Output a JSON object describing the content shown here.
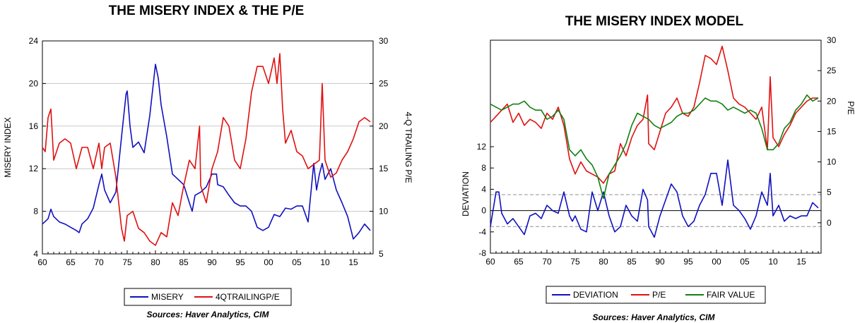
{
  "chart_data": [
    {
      "type": "line",
      "title": "THE MISERY INDEX & THE P/E",
      "ylabel_left": "MISERY INDEX",
      "ylabel_right": "4-Q TRAILING P/E",
      "xlim": [
        1960,
        2018.5
      ],
      "ylim_left": [
        4,
        24
      ],
      "ylim_right": [
        5,
        30
      ],
      "x_ticks": [
        "60",
        "65",
        "70",
        "75",
        "80",
        "85",
        "90",
        "95",
        "00",
        "05",
        "10",
        "15"
      ],
      "y_ticks_left": [
        "4",
        "8",
        "12",
        "16",
        "20",
        "24"
      ],
      "y_ticks_right": [
        "5",
        "10",
        "15",
        "20",
        "25",
        "30"
      ],
      "grid": true,
      "legend_position": "bottom",
      "source": "Sources:  Haver Analytics, CIM",
      "series": [
        {
          "name": "MISERY",
          "axis": "left",
          "color": "#1010c0",
          "x": [
            1960,
            1961,
            1961.5,
            1962,
            1963,
            1964,
            1965,
            1966,
            1966.5,
            1967,
            1968,
            1969,
            1970,
            1970.5,
            1971,
            1972,
            1973,
            1974,
            1974.8,
            1975,
            1975.5,
            1976,
            1977,
            1978,
            1979,
            1980,
            1980.5,
            1981,
            1982,
            1983,
            1984,
            1985,
            1986,
            1986.5,
            1987,
            1988,
            1989,
            1990,
            1990.8,
            1991,
            1992,
            1993,
            1994,
            1995,
            1996,
            1997,
            1998,
            1999,
            2000,
            2001,
            2002,
            2003,
            2004,
            2005,
            2006,
            2007,
            2008,
            2008.5,
            2009,
            2009.5,
            2010,
            2011,
            2012,
            2013,
            2014,
            2015,
            2016,
            2017,
            2018
          ],
          "y": [
            6.8,
            7.3,
            8.2,
            7.5,
            7.0,
            6.8,
            6.5,
            6.2,
            6.0,
            6.8,
            7.3,
            8.3,
            10.5,
            11.5,
            10.0,
            8.8,
            9.8,
            15.0,
            19.0,
            19.3,
            16.0,
            14.0,
            14.5,
            13.5,
            17.0,
            21.8,
            20.5,
            18.0,
            15.0,
            11.5,
            11.0,
            10.5,
            8.8,
            8.0,
            9.5,
            9.8,
            10.3,
            11.5,
            11.5,
            10.5,
            10.3,
            9.5,
            8.8,
            8.5,
            8.5,
            8.0,
            6.5,
            6.2,
            6.5,
            7.7,
            7.5,
            8.3,
            8.2,
            8.5,
            8.5,
            7.0,
            12.5,
            10.0,
            11.5,
            12.5,
            11.0,
            12.0,
            10.0,
            8.8,
            7.5,
            5.4,
            6.0,
            6.8,
            6.2
          ]
        },
        {
          "name": "4QTRAILINGP/E",
          "axis": "right",
          "color": "#e01010",
          "x": [
            1960,
            1960.5,
            1961,
            1961.5,
            1962,
            1962.5,
            1963,
            1964,
            1965,
            1966,
            1967,
            1968,
            1969,
            1970,
            1970.5,
            1971,
            1972,
            1973,
            1974,
            1974.5,
            1975,
            1976,
            1977,
            1978,
            1979,
            1980,
            1981,
            1982,
            1983,
            1984,
            1985,
            1986,
            1987,
            1987.8,
            1988,
            1989,
            1990,
            1991,
            1992,
            1993,
            1994,
            1995,
            1996,
            1997,
            1998,
            1999,
            2000,
            2001,
            2001.5,
            2002,
            2002.5,
            2003,
            2004,
            2005,
            2006,
            2007,
            2008,
            2009,
            2009.5,
            2010,
            2011,
            2012,
            2013,
            2014,
            2015,
            2016,
            2017,
            2018
          ],
          "y": [
            17.5,
            17.0,
            21.0,
            22.0,
            16.0,
            17.0,
            18.0,
            18.5,
            18.0,
            15.0,
            17.5,
            17.5,
            15.0,
            18.0,
            15.0,
            17.5,
            18.0,
            14.0,
            8.0,
            6.5,
            9.5,
            10.0,
            8.0,
            7.5,
            6.5,
            6.0,
            7.5,
            7.0,
            11.0,
            9.5,
            13.0,
            16.0,
            15.0,
            20.0,
            13.0,
            11.0,
            15.0,
            17.0,
            21.0,
            20.0,
            16.0,
            15.0,
            18.5,
            24.0,
            27.0,
            27.0,
            25.0,
            28.0,
            25.0,
            28.5,
            22.0,
            18.0,
            19.5,
            17.0,
            16.5,
            15.0,
            15.5,
            16.0,
            25.0,
            16.0,
            14.0,
            14.5,
            16.0,
            17.0,
            18.5,
            20.5,
            21.0,
            20.5
          ]
        }
      ]
    },
    {
      "type": "line",
      "title": "THE MISERY INDEX MODEL",
      "ylabel_left": "DEVIATION",
      "ylabel_right": "P/E",
      "xlim": [
        1960,
        2018.5
      ],
      "ylim_left": [
        -8,
        32
      ],
      "ylim_right": [
        -5,
        30
      ],
      "x_ticks": [
        "60",
        "65",
        "70",
        "75",
        "80",
        "85",
        "90",
        "95",
        "00",
        "05",
        "10",
        "15"
      ],
      "y_ticks_left": [
        "-8",
        "-4",
        "0",
        "4",
        "8",
        "12"
      ],
      "y_ticks_right": [
        "0",
        "5",
        "10",
        "15",
        "20",
        "25",
        "30"
      ],
      "reference_lines": [
        {
          "y": 0,
          "style": "solid"
        },
        {
          "y": 3,
          "style": "dashed"
        },
        {
          "y": -3,
          "style": "dashed"
        }
      ],
      "grid": false,
      "legend_position": "bottom",
      "source": "Sources:  Haver Analytics, CIM",
      "series": [
        {
          "name": "DEVIATION",
          "axis": "left",
          "color": "#1010c0",
          "x": [
            1960,
            1961,
            1961.5,
            1962,
            1963,
            1964,
            1965,
            1966,
            1967,
            1968,
            1969,
            1970,
            1971,
            1972,
            1973,
            1974,
            1974.5,
            1975,
            1976,
            1977,
            1978,
            1979,
            1980,
            1981,
            1982,
            1983,
            1984,
            1985,
            1986,
            1987,
            1987.8,
            1988,
            1989,
            1990,
            1991,
            1992,
            1993,
            1994,
            1995,
            1996,
            1997,
            1998,
            1999,
            2000,
            2001,
            2002,
            2003,
            2004,
            2005,
            2006,
            2007,
            2008,
            2009,
            2009.5,
            2010,
            2011,
            2012,
            2013,
            2014,
            2015,
            2016,
            2017,
            2018
          ],
          "y": [
            -3,
            3.5,
            3.5,
            -0.5,
            -2.5,
            -1.5,
            -3,
            -4.5,
            -1,
            -0.5,
            -1.5,
            1,
            0,
            -0.5,
            3.5,
            -1,
            -2,
            -1,
            -3.5,
            -4,
            3.5,
            0,
            3.5,
            -1,
            -4,
            -3,
            1,
            -1,
            -2,
            4,
            2,
            -3,
            -5,
            -1,
            2,
            5,
            3.5,
            -1,
            -3,
            -2,
            1,
            3,
            7,
            7,
            1,
            9.5,
            1,
            0,
            -1.5,
            -3.5,
            -1,
            3.5,
            1,
            7,
            -1,
            1,
            -2,
            -1,
            -1.5,
            -1,
            -1,
            1.5,
            0.5
          ]
        },
        {
          "name": "P/E",
          "axis": "right",
          "color": "#e01010",
          "x": [
            1960,
            1961,
            1962,
            1963,
            1964,
            1965,
            1966,
            1967,
            1968,
            1969,
            1970,
            1971,
            1972,
            1973,
            1974,
            1975,
            1976,
            1977,
            1978,
            1979,
            1980,
            1981,
            1982,
            1983,
            1984,
            1985,
            1986,
            1987,
            1987.8,
            1988,
            1989,
            1990,
            1991,
            1992,
            1993,
            1994,
            1995,
            1996,
            1997,
            1998,
            1999,
            2000,
            2001,
            2002,
            2003,
            2004,
            2005,
            2006,
            2007,
            2008,
            2009,
            2009.5,
            2010,
            2011,
            2012,
            2013,
            2014,
            2015,
            2016,
            2017,
            2018
          ],
          "y": [
            16.5,
            17.5,
            18.5,
            19.5,
            16.5,
            18.0,
            16.0,
            17.0,
            16.5,
            15.5,
            18.0,
            17.0,
            19.0,
            16.0,
            10.5,
            8.0,
            10.0,
            8.5,
            8.0,
            7.5,
            6.5,
            8.0,
            8.5,
            13.0,
            11.0,
            14.0,
            16.0,
            17.0,
            21.0,
            13.0,
            12.0,
            15.0,
            18.0,
            19.0,
            20.5,
            18.0,
            17.5,
            19.0,
            23.0,
            27.5,
            27.0,
            26.0,
            29.0,
            25.0,
            20.5,
            19.5,
            19.0,
            18.0,
            17.0,
            19.0,
            12.0,
            24.0,
            14.0,
            12.5,
            14.5,
            16.0,
            18.0,
            19.0,
            20.0,
            20.5,
            20.5
          ]
        },
        {
          "name": "FAIR VALUE",
          "axis": "right",
          "color": "#108010",
          "x": [
            1960,
            1961,
            1962,
            1963,
            1964,
            1965,
            1966,
            1967,
            1968,
            1969,
            1970,
            1971,
            1972,
            1973,
            1974,
            1975,
            1976,
            1977,
            1978,
            1979,
            1980,
            1981,
            1982,
            1983,
            1984,
            1985,
            1986,
            1987,
            1988,
            1989,
            1990,
            1991,
            1992,
            1993,
            1994,
            1995,
            1996,
            1997,
            1998,
            1999,
            2000,
            2001,
            2002,
            2003,
            2004,
            2005,
            2006,
            2007,
            2008,
            2009,
            2010,
            2011,
            2012,
            2013,
            2014,
            2015,
            2016,
            2017,
            2018
          ],
          "y": [
            19.5,
            19.0,
            18.5,
            19.0,
            19.5,
            19.5,
            20.0,
            19.0,
            18.5,
            18.5,
            17.0,
            17.5,
            18.5,
            17.0,
            12.0,
            11.0,
            12.0,
            10.5,
            9.5,
            7.5,
            4.0,
            8.0,
            9.5,
            11.0,
            13.0,
            16.0,
            18.0,
            17.5,
            17.0,
            16.0,
            15.5,
            16.0,
            16.5,
            17.5,
            18.0,
            18.0,
            18.5,
            19.5,
            20.5,
            20.0,
            20.0,
            19.5,
            18.5,
            19.0,
            18.5,
            18.0,
            18.5,
            18.0,
            15.5,
            12.0,
            12.0,
            13.0,
            15.5,
            16.5,
            18.5,
            19.5,
            21.0,
            20.0,
            20.5
          ]
        }
      ]
    }
  ]
}
